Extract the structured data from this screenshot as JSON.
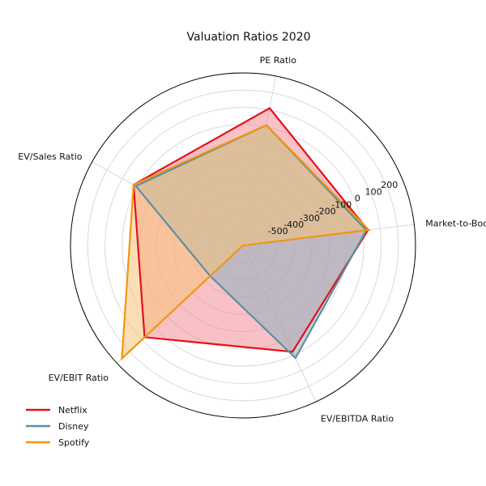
{
  "chart_data": {
    "type": "radar",
    "title": "Valuation Ratios 2020",
    "axes": [
      "Market-to-Book Ratio",
      "PE Ratio",
      "EV/Sales Ratio",
      "EV/EBIT Ratio",
      "EV/EBITDA Ratio"
    ],
    "radial_range": [
      -700,
      300
    ],
    "radial_ticks": [
      -500,
      -400,
      -300,
      -200,
      -100,
      0,
      100,
      200
    ],
    "grid": true,
    "legend_position": "lower-left",
    "series": [
      {
        "name": "Netflix",
        "color": "#e3111b",
        "fill": "#f28e96",
        "values": [
          30,
          110,
          25,
          80,
          -20
        ]
      },
      {
        "name": "Disney",
        "color": "#5c8fa3",
        "fill": "#8fb0c0",
        "values": [
          20,
          10,
          10,
          -440,
          20
        ]
      },
      {
        "name": "Spotify",
        "color": "#f0960f",
        "fill": "#f6c27a",
        "values": [
          35,
          10,
          25,
          260,
          -700
        ]
      }
    ]
  }
}
